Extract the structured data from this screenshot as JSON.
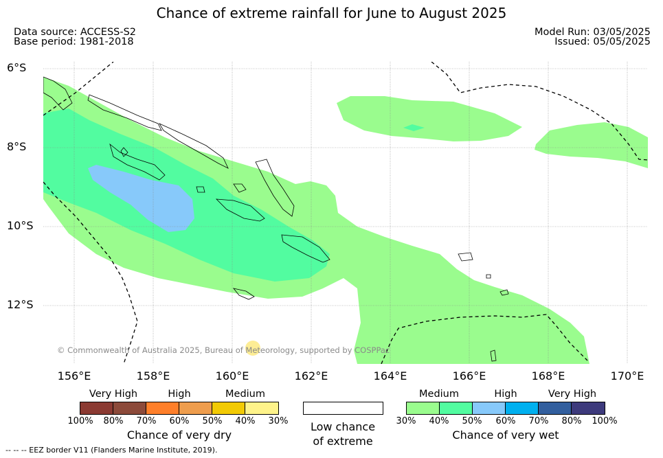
{
  "title": "Chance of extreme rainfall for June to August 2025",
  "header": {
    "data_source": "Data source: ACCESS-S2",
    "base_period": "Base period: 1981-2018",
    "model_run": "Model Run: 03/05/2025",
    "issued": "Issued: 05/05/2025"
  },
  "map": {
    "lat_labels": [
      "6°S",
      "8°S",
      "10°S",
      "12°S"
    ],
    "lon_labels": [
      "156°E",
      "158°E",
      "160°E",
      "162°E",
      "164°E",
      "166°E",
      "168°E",
      "170°E"
    ],
    "copyright": "© Commonwealth of Australia 2025, Bureau of Meteorology, supported by COSPPac",
    "colors": {
      "medium_wet": "#9afc8e",
      "high_wet": "#52fca0",
      "very_high_wet": "#87c9fa",
      "coastline": "#000000",
      "eez_border": "#000000",
      "grid": "#888888"
    }
  },
  "legend_dry": {
    "categories": [
      "Very High",
      "High",
      "Medium"
    ],
    "ticks": [
      "100%",
      "80%",
      "70%",
      "60%",
      "50%",
      "40%",
      "30%"
    ],
    "colors": [
      "#8b3a32",
      "#8c4a3a",
      "#fe7f2a",
      "#ee9d4d",
      "#f2ca04",
      "#fef38a"
    ],
    "title": "Chance of very dry"
  },
  "legend_low": {
    "line1": "Low chance",
    "line2": "of extreme",
    "color": "#ffffff"
  },
  "legend_wet": {
    "categories": [
      "Medium",
      "High",
      "Very High"
    ],
    "ticks": [
      "30%",
      "40%",
      "50%",
      "60%",
      "70%",
      "80%",
      "100%"
    ],
    "colors": [
      "#9afc8e",
      "#52fca0",
      "#87c9fa",
      "#00b0ef",
      "#325f9e",
      "#3d3a7c"
    ],
    "title": "Chance of very wet"
  },
  "footer": "-- -- -- EEZ border V11 (Flanders Marine Institute, 2019)."
}
